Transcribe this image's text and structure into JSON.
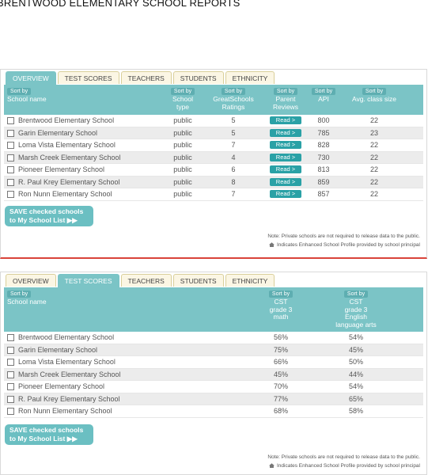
{
  "page_title": "BRENTWOOD ELEMENTARY SCHOOL REPORTS",
  "tabs": [
    "OVERVIEW",
    "TEST SCORES",
    "TEACHERS",
    "STUDENTS",
    "ETHNICITY"
  ],
  "sort_label": "Sort by",
  "read_label": "Read >",
  "save_label_line1": "SAVE checked schools",
  "save_label_line2": "to My School List ▶▶",
  "note_line1": "Note: Private schools are not required to release data to the public.",
  "note_line2": "Indicates Enhanced School Profile provided by school principal",
  "overview": {
    "headers": {
      "school_name": "School name",
      "school_type": [
        "School",
        "type"
      ],
      "rating": [
        "GreatSchools",
        "Ratings"
      ],
      "reviews": [
        "Parent",
        "Reviews"
      ],
      "api": "API",
      "class_size": "Avg. class size"
    },
    "rows": [
      {
        "name": "Brentwood Elementary School",
        "type": "public",
        "rating": "5",
        "api": "800",
        "size": "22"
      },
      {
        "name": "Garin Elementary School",
        "type": "public",
        "rating": "5",
        "api": "785",
        "size": "23"
      },
      {
        "name": "Loma Vista Elementary School",
        "type": "public",
        "rating": "7",
        "api": "828",
        "size": "22"
      },
      {
        "name": "Marsh Creek Elementary School",
        "type": "public",
        "rating": "4",
        "api": "730",
        "size": "22"
      },
      {
        "name": "Pioneer Elementary School",
        "type": "public",
        "rating": "6",
        "api": "813",
        "size": "22"
      },
      {
        "name": "R. Paul Krey Elementary School",
        "type": "public",
        "rating": "8",
        "api": "859",
        "size": "22"
      },
      {
        "name": "Ron Nunn Elementary School",
        "type": "public",
        "rating": "7",
        "api": "857",
        "size": "22"
      }
    ]
  },
  "scores": {
    "headers": {
      "school_name": "School name",
      "math": [
        "CST",
        "grade 3",
        "math"
      ],
      "ela": [
        "CST",
        "grade 3",
        "English",
        "language arts"
      ]
    },
    "rows": [
      {
        "name": "Brentwood Elementary School",
        "math": "56%",
        "ela": "54%"
      },
      {
        "name": "Garin Elementary School",
        "math": "75%",
        "ela": "45%"
      },
      {
        "name": "Loma Vista Elementary School",
        "math": "66%",
        "ela": "50%"
      },
      {
        "name": "Marsh Creek Elementary School",
        "math": "45%",
        "ela": "44%"
      },
      {
        "name": "Pioneer Elementary School",
        "math": "70%",
        "ela": "54%"
      },
      {
        "name": "R. Paul Krey Elementary School",
        "math": "77%",
        "ela": "65%"
      },
      {
        "name": "Ron Nunn Elementary School",
        "math": "68%",
        "ela": "58%"
      }
    ]
  }
}
